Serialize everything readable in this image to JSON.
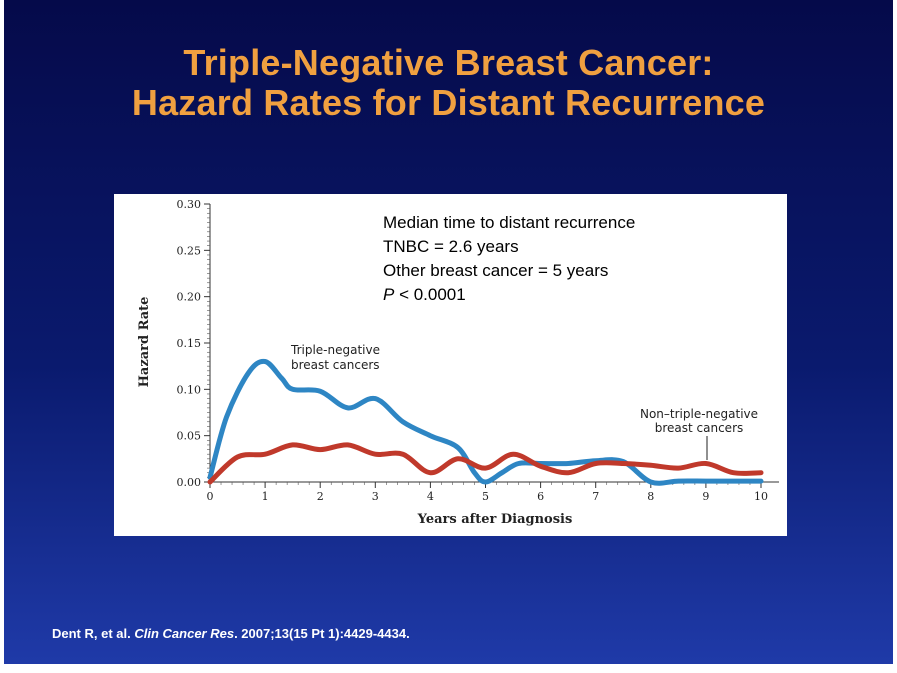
{
  "title": {
    "line1": "Triple-Negative Breast Cancer:",
    "line2": "Hazard Rates for Distant Recurrence"
  },
  "colors": {
    "title": "#f0a040",
    "tnbc": "#2e86c4",
    "non_tnbc": "#c0392b",
    "background_top": "#050a4a",
    "background_bottom": "#1f3aa8"
  },
  "annotation": {
    "line1": "Median time to distant recurrence",
    "line2": "TNBC = 2.6 years",
    "line3": "Other breast cancer = 5 years",
    "p_symbol": "P",
    "p_rest": " < 0.0001"
  },
  "chart_data": {
    "type": "line",
    "xlabel": "Years after Diagnosis",
    "ylabel": "Hazard Rate",
    "xlim": [
      0,
      10
    ],
    "ylim": [
      0,
      0.3
    ],
    "x_ticks": [
      "0",
      "1",
      "2",
      "3",
      "4",
      "5",
      "6",
      "7",
      "8",
      "9",
      "10"
    ],
    "y_ticks": [
      "0.00",
      "0.05",
      "0.10",
      "0.15",
      "0.20",
      "0.25",
      "0.30"
    ],
    "grid": false,
    "series": [
      {
        "name": "Triple-negative breast cancers",
        "label_line1": "Triple-negative",
        "label_line2": "breast cancers",
        "points": [
          [
            0,
            0.005
          ],
          [
            0.3,
            0.07
          ],
          [
            0.7,
            0.118
          ],
          [
            1.0,
            0.13
          ],
          [
            1.3,
            0.112
          ],
          [
            1.5,
            0.1
          ],
          [
            2.0,
            0.098
          ],
          [
            2.5,
            0.08
          ],
          [
            3.0,
            0.09
          ],
          [
            3.5,
            0.065
          ],
          [
            4.0,
            0.05
          ],
          [
            4.5,
            0.037
          ],
          [
            4.8,
            0.01
          ],
          [
            5.0,
            0.0
          ],
          [
            5.3,
            0.01
          ],
          [
            5.6,
            0.02
          ],
          [
            6.0,
            0.02
          ],
          [
            6.5,
            0.02
          ],
          [
            7.0,
            0.023
          ],
          [
            7.5,
            0.022
          ],
          [
            8.0,
            0.0
          ],
          [
            8.5,
            0.001
          ],
          [
            9.0,
            0.001
          ],
          [
            9.5,
            0.001
          ],
          [
            10.0,
            0.001
          ]
        ]
      },
      {
        "name": "Non–triple-negative breast cancers",
        "label_line1": "Non–triple-negative",
        "label_line2": "breast cancers",
        "points": [
          [
            0,
            0.0
          ],
          [
            0.5,
            0.027
          ],
          [
            1.0,
            0.03
          ],
          [
            1.5,
            0.04
          ],
          [
            2.0,
            0.035
          ],
          [
            2.5,
            0.04
          ],
          [
            3.0,
            0.03
          ],
          [
            3.5,
            0.03
          ],
          [
            4.0,
            0.01
          ],
          [
            4.5,
            0.025
          ],
          [
            5.0,
            0.015
          ],
          [
            5.5,
            0.03
          ],
          [
            6.0,
            0.017
          ],
          [
            6.5,
            0.01
          ],
          [
            7.0,
            0.02
          ],
          [
            7.5,
            0.02
          ],
          [
            8.0,
            0.018
          ],
          [
            8.5,
            0.015
          ],
          [
            9.0,
            0.02
          ],
          [
            9.5,
            0.01
          ],
          [
            10.0,
            0.01
          ]
        ]
      }
    ]
  },
  "citation": {
    "authors": "Dent R, et al. ",
    "journal": "Clin Cancer Res",
    "details": ". 2007;13(15 Pt 1):4429-4434."
  }
}
